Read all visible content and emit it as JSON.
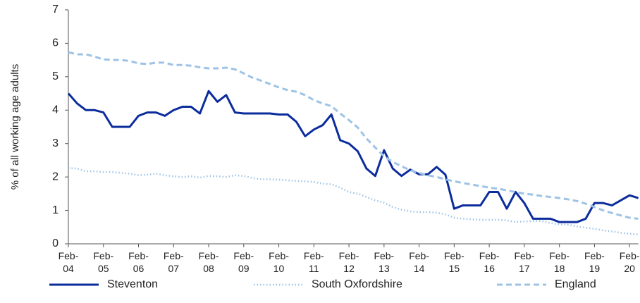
{
  "chart_data": {
    "type": "line",
    "y_label": "% of all working age adults",
    "categories": [
      "Feb-04",
      null,
      null,
      null,
      "Feb-05",
      null,
      null,
      null,
      "Feb-06",
      null,
      null,
      null,
      "Feb-07",
      null,
      null,
      null,
      "Feb-08",
      null,
      null,
      null,
      "Feb-09",
      null,
      null,
      null,
      "Feb-10",
      null,
      null,
      null,
      "Feb-11",
      null,
      null,
      null,
      "Feb-12",
      null,
      null,
      null,
      "Feb-13",
      null,
      null,
      null,
      "Feb-14",
      null,
      null,
      null,
      "Feb-15",
      null,
      null,
      null,
      "Feb-16",
      null,
      null,
      null,
      "Feb-17",
      null,
      null,
      null,
      "Feb-18",
      null,
      null,
      null,
      "Feb-19",
      null,
      null,
      null,
      "Feb-20",
      null
    ],
    "series": [
      {
        "name": "Steventon",
        "color": "#0b2c9c",
        "dash": "solid",
        "values": [
          4.5,
          4.2,
          4.0,
          4.0,
          3.93,
          3.5,
          3.5,
          3.5,
          3.83,
          3.93,
          3.93,
          3.83,
          4.0,
          4.1,
          4.1,
          3.9,
          4.57,
          4.25,
          4.45,
          3.93,
          3.9,
          3.9,
          3.9,
          3.9,
          3.87,
          3.87,
          3.65,
          3.22,
          3.42,
          3.55,
          3.87,
          3.1,
          3.0,
          2.77,
          2.25,
          2.03,
          2.8,
          2.25,
          2.03,
          2.22,
          2.08,
          2.08,
          2.3,
          2.07,
          1.05,
          1.15,
          1.15,
          1.15,
          1.55,
          1.55,
          1.05,
          1.55,
          1.22,
          0.75,
          0.75,
          0.75,
          0.65,
          0.65,
          0.65,
          0.75,
          1.22,
          1.22,
          1.15,
          1.3,
          1.45,
          1.37
        ]
      },
      {
        "name": "South Oxfordshire",
        "color": "#9dc3e6",
        "dash": "dotted",
        "values": [
          2.27,
          2.25,
          2.17,
          2.17,
          2.15,
          2.15,
          2.12,
          2.1,
          2.05,
          2.07,
          2.1,
          2.05,
          2.02,
          2.0,
          2.02,
          1.98,
          2.03,
          2.02,
          2.0,
          2.05,
          2.03,
          1.97,
          1.93,
          1.93,
          1.92,
          1.9,
          1.88,
          1.87,
          1.85,
          1.8,
          1.78,
          1.68,
          1.55,
          1.5,
          1.4,
          1.3,
          1.23,
          1.1,
          1.02,
          0.97,
          0.95,
          0.95,
          0.93,
          0.88,
          0.78,
          0.75,
          0.73,
          0.72,
          0.72,
          0.72,
          0.7,
          0.65,
          0.67,
          0.68,
          0.68,
          0.62,
          0.58,
          0.57,
          0.52,
          0.48,
          0.45,
          0.4,
          0.37,
          0.33,
          0.3,
          0.28
        ]
      },
      {
        "name": "England",
        "color": "#9dc3e6",
        "dash": "dashed",
        "values": [
          5.73,
          5.67,
          5.67,
          5.6,
          5.52,
          5.5,
          5.5,
          5.47,
          5.4,
          5.38,
          5.42,
          5.42,
          5.35,
          5.35,
          5.33,
          5.28,
          5.25,
          5.25,
          5.27,
          5.22,
          5.1,
          4.97,
          4.88,
          4.78,
          4.68,
          4.6,
          4.55,
          4.45,
          4.3,
          4.2,
          4.12,
          3.9,
          3.7,
          3.48,
          3.15,
          2.88,
          2.62,
          2.45,
          2.32,
          2.2,
          2.12,
          2.05,
          2.0,
          1.93,
          1.87,
          1.82,
          1.77,
          1.73,
          1.68,
          1.65,
          1.6,
          1.55,
          1.5,
          1.47,
          1.43,
          1.4,
          1.37,
          1.33,
          1.28,
          1.2,
          1.1,
          1.0,
          0.92,
          0.85,
          0.78,
          0.75
        ]
      }
    ],
    "ylim": [
      0,
      7
    ],
    "yticks": [
      0,
      1,
      2,
      3,
      4,
      5,
      6,
      7
    ],
    "grid": false,
    "legend": "bottom"
  }
}
